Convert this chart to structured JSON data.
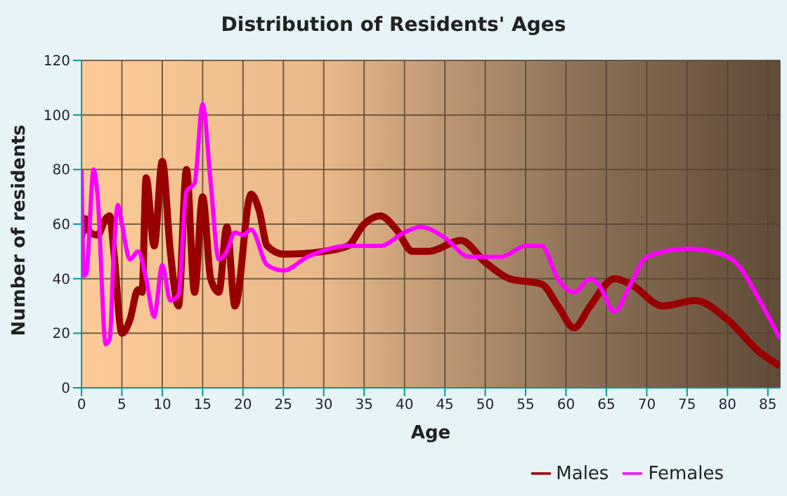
{
  "chart_data": {
    "type": "line",
    "title": "Distribution of Residents' Ages",
    "xlabel": "Age",
    "ylabel": "Number of residents",
    "xlim": [
      0,
      86.5
    ],
    "xticks": [
      0,
      5,
      10,
      15,
      20,
      25,
      30,
      35,
      40,
      45,
      50,
      55,
      60,
      65,
      70,
      75,
      80,
      85
    ],
    "ylim": [
      0,
      120
    ],
    "yticks": [
      0,
      20,
      40,
      60,
      80,
      100,
      120
    ],
    "grid": true,
    "legend": "bottom right",
    "marker": "none",
    "line_style": "solid",
    "series": [
      {
        "name": "Males",
        "color": "#990000",
        "x": [
          0,
          0.5,
          1,
          2,
          3,
          3.5,
          4,
          5,
          6,
          7,
          7.5,
          8,
          9,
          10,
          11,
          12,
          13,
          14,
          15,
          16,
          17,
          18,
          19,
          21,
          22,
          23,
          25,
          30,
          33,
          35,
          37,
          39,
          41,
          43,
          47,
          50,
          53,
          57,
          59,
          61,
          63,
          66,
          68,
          72,
          76,
          80,
          84,
          86.5
        ],
        "values": [
          55,
          62,
          57,
          56,
          62,
          63,
          50,
          20,
          25,
          36,
          35,
          77,
          52,
          83,
          50,
          30,
          80,
          35,
          70,
          40,
          35,
          59,
          30,
          71,
          65,
          52,
          49,
          50,
          52,
          60,
          63,
          58,
          50,
          50,
          54,
          46,
          40,
          38,
          30,
          22,
          30,
          40,
          38,
          30,
          32,
          25,
          13,
          8
        ]
      },
      {
        "name": "Females",
        "color": "#ff00ff",
        "x": [
          0,
          0.3,
          0.6,
          1.5,
          2,
          3,
          3.5,
          4,
          4.5,
          5,
          6,
          7,
          8,
          9,
          10,
          11,
          12,
          13,
          14,
          15,
          16,
          17,
          18,
          19,
          20,
          21,
          23,
          25,
          28,
          33,
          37,
          40,
          42,
          45,
          48,
          52,
          55,
          57,
          59,
          61,
          63,
          64,
          66,
          68,
          70,
          75,
          78,
          81,
          84,
          86.5
        ],
        "values": [
          80,
          41,
          42,
          80,
          70,
          16,
          18,
          50,
          67,
          60,
          47,
          50,
          40,
          26,
          45,
          32,
          34,
          72,
          75,
          104,
          75,
          47,
          50,
          57,
          56,
          58,
          45,
          43,
          48,
          52,
          52,
          57,
          59,
          55,
          48,
          48,
          52,
          52,
          40,
          35,
          40,
          38,
          28,
          38,
          48,
          51,
          50,
          46,
          32,
          18
        ]
      }
    ]
  }
}
